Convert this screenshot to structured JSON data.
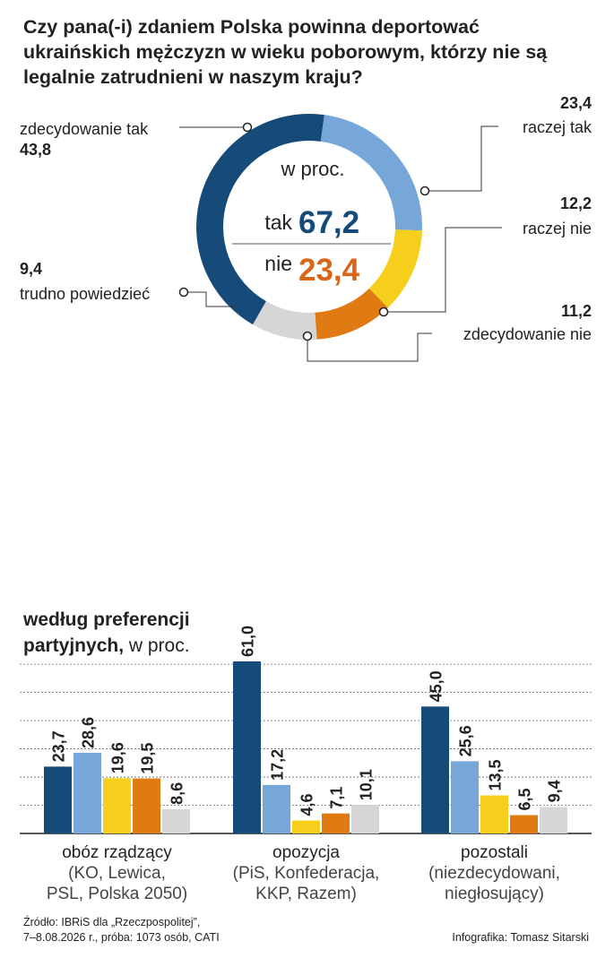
{
  "title": "Czy pana(-i) zdaniem Polska powinna deportować\nukraińskich mężczyzn w wieku poborowym, którzy nie są\nlegalnie zatrudnieni w naszym kraju?",
  "donut_center": {
    "unit_label": "w proc.",
    "yes_label": "tak",
    "yes_value": "67,2",
    "no_label": "nie",
    "no_value": "23,4"
  },
  "colors": {
    "dark_blue": "#164a78",
    "light_blue": "#77a7d8",
    "yellow": "#f5cf1c",
    "orange": "#e07a12",
    "gray": "#d6d6d6",
    "no_accent": "#d8661a",
    "grid": "#666666"
  },
  "chart_data": [
    {
      "type": "pie",
      "title": "Czy pana(-i) zdaniem Polska powinna deportować ukraińskich mężczyzn w wieku poborowym, którzy nie są legalnie zatrudnieni w naszym kraju?",
      "unit": "w proc.",
      "slices": [
        {
          "label": "zdecydowanie tak",
          "value": 43.8,
          "display": "43,8",
          "color": "#164a78"
        },
        {
          "label": "raczej tak",
          "value": 23.4,
          "display": "23,4",
          "color": "#77a7d8"
        },
        {
          "label": "raczej nie",
          "value": 12.2,
          "display": "12,2",
          "color": "#f5cf1c"
        },
        {
          "label": "zdecydowanie nie",
          "value": 11.2,
          "display": "11,2",
          "color": "#e07a12"
        },
        {
          "label": "trudno powiedzieć",
          "value": 9.4,
          "display": "9,4",
          "color": "#d6d6d6"
        }
      ]
    },
    {
      "type": "bar",
      "title_bold": "według preferencji partyjnych,",
      "title_rest": " w proc.",
      "ylim": [
        0,
        65
      ],
      "series_colors": [
        "#164a78",
        "#77a7d8",
        "#f5cf1c",
        "#e07a12",
        "#d6d6d6"
      ],
      "groups": [
        {
          "label": "obóz rządzący",
          "sublabel": "(KO, Lewica, PSL, Polska 2050)",
          "values": [
            23.7,
            28.6,
            19.6,
            19.5,
            8.6
          ],
          "display": [
            "23,7",
            "28,6",
            "19,6",
            "19,5",
            "8,6"
          ]
        },
        {
          "label": "opozycja",
          "sublabel": "(PiS, Konfederacja, KKP, Razem)",
          "values": [
            61.0,
            17.2,
            4.6,
            7.1,
            10.1
          ],
          "display": [
            "61,0",
            "17,2",
            "4,6",
            "7,1",
            "10,1"
          ]
        },
        {
          "label": "pozostali",
          "sublabel": "(niezdecydowani, niegłosujący)",
          "values": [
            45.0,
            25.6,
            13.5,
            6.5,
            9.4
          ],
          "display": [
            "45,0",
            "25,6",
            "13,5",
            "6,5",
            "9,4"
          ]
        }
      ]
    }
  ],
  "group_label_lines": [
    [
      "obóz rządzący",
      "(KO, Lewica,",
      "PSL, Polska 2050)"
    ],
    [
      "opozycja",
      "(PiS, Konfederacja,",
      "KKP, Razem)"
    ],
    [
      "pozostali",
      "(niezdecydowani,",
      "niegłosujący)"
    ]
  ],
  "footer": {
    "source": "Źródło: IBRiS dla „Rzeczpospolitej”,\n7–8.08.2026 r., próba: 1073 osób, CATI",
    "credit": "Infografika: Tomasz Sitarski"
  }
}
